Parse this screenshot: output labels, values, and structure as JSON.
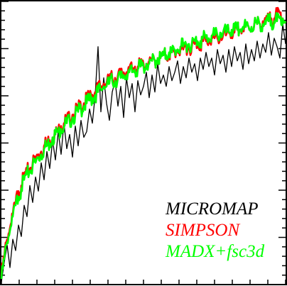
{
  "chart_data": {
    "type": "line",
    "title": "",
    "xlabel": "",
    "ylabel": "",
    "xlim": [
      0,
      100
    ],
    "ylim": [
      0,
      100
    ],
    "grid": false,
    "legend_position": "bottom-right",
    "series": [
      {
        "name": "MICROMAP",
        "color": "#000000",
        "values": [
          [
            0,
            1
          ],
          [
            1,
            8
          ],
          [
            2,
            14
          ],
          [
            3,
            6
          ],
          [
            4,
            16
          ],
          [
            5,
            12
          ],
          [
            6,
            21
          ],
          [
            7,
            17
          ],
          [
            8,
            28
          ],
          [
            9,
            24
          ],
          [
            10,
            35
          ],
          [
            11,
            29
          ],
          [
            12,
            38
          ],
          [
            13,
            33
          ],
          [
            14,
            43
          ],
          [
            15,
            37
          ],
          [
            16,
            47
          ],
          [
            17,
            41
          ],
          [
            18,
            51
          ],
          [
            19,
            44
          ],
          [
            20,
            54
          ],
          [
            21,
            46
          ],
          [
            22,
            57
          ],
          [
            23,
            48
          ],
          [
            24,
            53
          ],
          [
            25,
            45
          ],
          [
            26,
            56
          ],
          [
            27,
            49
          ],
          [
            28,
            58
          ],
          [
            29,
            52
          ],
          [
            30,
            54
          ],
          [
            31,
            62
          ],
          [
            32,
            57
          ],
          [
            33,
            67
          ],
          [
            34,
            84
          ],
          [
            35,
            61
          ],
          [
            36,
            73
          ],
          [
            37,
            64
          ],
          [
            38,
            58
          ],
          [
            39,
            68
          ],
          [
            40,
            72
          ],
          [
            41,
            63
          ],
          [
            42,
            70
          ],
          [
            43,
            59
          ],
          [
            44,
            73
          ],
          [
            45,
            66
          ],
          [
            46,
            71
          ],
          [
            47,
            61
          ],
          [
            48,
            72
          ],
          [
            49,
            67
          ],
          [
            50,
            70
          ],
          [
            51,
            75
          ],
          [
            52,
            66
          ],
          [
            53,
            74
          ],
          [
            54,
            68
          ],
          [
            55,
            78
          ],
          [
            56,
            71
          ],
          [
            57,
            74
          ],
          [
            58,
            70
          ],
          [
            59,
            77
          ],
          [
            60,
            72
          ],
          [
            61,
            75
          ],
          [
            62,
            79
          ],
          [
            63,
            71
          ],
          [
            64,
            77
          ],
          [
            65,
            73
          ],
          [
            66,
            80
          ],
          [
            67,
            75
          ],
          [
            68,
            78
          ],
          [
            69,
            72
          ],
          [
            70,
            80
          ],
          [
            71,
            76
          ],
          [
            72,
            82
          ],
          [
            73,
            77
          ],
          [
            74,
            80
          ],
          [
            75,
            74
          ],
          [
            76,
            83
          ],
          [
            77,
            78
          ],
          [
            78,
            81
          ],
          [
            79,
            75
          ],
          [
            80,
            83
          ],
          [
            81,
            77
          ],
          [
            82,
            84
          ],
          [
            83,
            79
          ],
          [
            84,
            82
          ],
          [
            85,
            76
          ],
          [
            86,
            85
          ],
          [
            87,
            78
          ],
          [
            88,
            83
          ],
          [
            89,
            79
          ],
          [
            90,
            86
          ],
          [
            91,
            80
          ],
          [
            92,
            85
          ],
          [
            93,
            82
          ],
          [
            94,
            89
          ],
          [
            95,
            81
          ],
          [
            96,
            87
          ],
          [
            97,
            84
          ],
          [
            98,
            80
          ],
          [
            99,
            92
          ],
          [
            100,
            85
          ]
        ]
      },
      {
        "name": "SIMPSON",
        "color": "#ff0000",
        "values": [
          [
            0,
            3
          ],
          [
            1,
            10
          ],
          [
            2,
            16
          ],
          [
            3,
            20
          ],
          [
            4,
            25
          ],
          [
            5,
            29
          ],
          [
            6,
            33
          ],
          [
            7,
            35
          ],
          [
            8,
            38
          ],
          [
            9,
            40
          ],
          [
            10,
            41
          ],
          [
            11,
            43
          ],
          [
            12,
            44
          ],
          [
            13,
            46
          ],
          [
            14,
            47
          ],
          [
            15,
            49
          ],
          [
            16,
            50
          ],
          [
            17,
            51
          ],
          [
            18,
            52
          ],
          [
            19,
            53
          ],
          [
            20,
            55
          ],
          [
            21,
            56
          ],
          [
            22,
            57
          ],
          [
            23,
            58
          ],
          [
            24,
            59
          ],
          [
            25,
            60
          ],
          [
            26,
            61
          ],
          [
            27,
            62
          ],
          [
            28,
            63
          ],
          [
            29,
            64
          ],
          [
            30,
            65
          ],
          [
            31,
            66
          ],
          [
            32,
            67
          ],
          [
            33,
            68
          ],
          [
            34,
            69
          ],
          [
            35,
            70
          ],
          [
            36,
            71
          ],
          [
            37,
            71
          ],
          [
            38,
            72
          ],
          [
            39,
            73
          ],
          [
            40,
            73
          ],
          [
            41,
            74
          ],
          [
            42,
            74
          ],
          [
            43,
            75
          ],
          [
            44,
            75
          ],
          [
            45,
            76
          ],
          [
            46,
            76
          ],
          [
            47,
            77
          ],
          [
            48,
            77
          ],
          [
            49,
            77
          ],
          [
            50,
            78
          ],
          [
            51,
            78
          ],
          [
            52,
            79
          ],
          [
            53,
            79
          ],
          [
            54,
            79
          ],
          [
            55,
            80
          ],
          [
            56,
            80
          ],
          [
            57,
            81
          ],
          [
            58,
            81
          ],
          [
            59,
            81
          ],
          [
            60,
            82
          ],
          [
            61,
            82
          ],
          [
            62,
            83
          ],
          [
            63,
            83
          ],
          [
            64,
            83
          ],
          [
            65,
            84
          ],
          [
            66,
            84
          ],
          [
            67,
            84
          ],
          [
            68,
            85
          ],
          [
            69,
            85
          ],
          [
            70,
            85
          ],
          [
            71,
            86
          ],
          [
            72,
            86
          ],
          [
            73,
            86
          ],
          [
            74,
            87
          ],
          [
            75,
            87
          ],
          [
            76,
            87
          ],
          [
            77,
            88
          ],
          [
            78,
            88
          ],
          [
            79,
            88
          ],
          [
            80,
            89
          ],
          [
            81,
            89
          ],
          [
            82,
            89
          ],
          [
            83,
            90
          ],
          [
            84,
            90
          ],
          [
            85,
            90
          ],
          [
            86,
            91
          ],
          [
            87,
            91
          ],
          [
            88,
            91
          ],
          [
            89,
            92
          ],
          [
            90,
            92
          ],
          [
            91,
            92
          ],
          [
            92,
            93
          ],
          [
            93,
            93
          ],
          [
            94,
            93
          ],
          [
            95,
            94
          ],
          [
            96,
            94
          ],
          [
            97,
            95
          ],
          [
            98,
            96
          ],
          [
            99,
            94
          ],
          [
            100,
            93
          ]
        ]
      },
      {
        "name": "MADX+fsc3d",
        "color": "#00ff00",
        "values": [
          [
            0,
            2
          ],
          [
            1,
            9
          ],
          [
            2,
            15
          ],
          [
            3,
            19
          ],
          [
            4,
            24
          ],
          [
            5,
            28
          ],
          [
            6,
            31
          ],
          [
            7,
            34
          ],
          [
            8,
            37
          ],
          [
            9,
            39
          ],
          [
            10,
            40
          ],
          [
            11,
            42
          ],
          [
            12,
            43
          ],
          [
            13,
            45
          ],
          [
            14,
            46
          ],
          [
            15,
            48
          ],
          [
            16,
            49
          ],
          [
            17,
            50
          ],
          [
            18,
            52
          ],
          [
            19,
            53
          ],
          [
            20,
            54
          ],
          [
            21,
            55
          ],
          [
            22,
            56
          ],
          [
            23,
            57
          ],
          [
            24,
            58
          ],
          [
            25,
            59
          ],
          [
            26,
            60
          ],
          [
            27,
            61
          ],
          [
            28,
            62
          ],
          [
            29,
            63
          ],
          [
            30,
            64
          ],
          [
            31,
            65
          ],
          [
            32,
            66
          ],
          [
            33,
            67
          ],
          [
            34,
            68
          ],
          [
            35,
            69
          ],
          [
            36,
            70
          ],
          [
            37,
            70
          ],
          [
            38,
            71
          ],
          [
            39,
            72
          ],
          [
            40,
            72
          ],
          [
            41,
            73
          ],
          [
            42,
            73
          ],
          [
            43,
            74
          ],
          [
            44,
            74
          ],
          [
            45,
            75
          ],
          [
            46,
            75
          ],
          [
            47,
            76
          ],
          [
            48,
            76
          ],
          [
            49,
            77
          ],
          [
            50,
            77
          ],
          [
            51,
            78
          ],
          [
            52,
            78
          ],
          [
            53,
            79
          ],
          [
            54,
            79
          ],
          [
            55,
            80
          ],
          [
            56,
            80
          ],
          [
            57,
            81
          ],
          [
            58,
            81
          ],
          [
            59,
            82
          ],
          [
            60,
            82
          ],
          [
            61,
            83
          ],
          [
            62,
            83
          ],
          [
            63,
            84
          ],
          [
            64,
            84
          ],
          [
            65,
            85
          ],
          [
            66,
            85
          ],
          [
            67,
            85
          ],
          [
            68,
            86
          ],
          [
            69,
            86
          ],
          [
            70,
            86
          ],
          [
            71,
            87
          ],
          [
            72,
            87
          ],
          [
            73,
            87
          ],
          [
            74,
            88
          ],
          [
            75,
            88
          ],
          [
            76,
            88
          ],
          [
            77,
            89
          ],
          [
            78,
            89
          ],
          [
            79,
            89
          ],
          [
            80,
            89
          ],
          [
            81,
            90
          ],
          [
            82,
            90
          ],
          [
            83,
            90
          ],
          [
            84,
            90
          ],
          [
            85,
            91
          ],
          [
            86,
            91
          ],
          [
            87,
            91
          ],
          [
            88,
            91
          ],
          [
            89,
            92
          ],
          [
            90,
            92
          ],
          [
            91,
            92
          ],
          [
            92,
            92
          ],
          [
            93,
            92
          ],
          [
            94,
            93
          ],
          [
            95,
            93
          ],
          [
            96,
            93
          ],
          [
            97,
            93
          ],
          [
            98,
            94
          ],
          [
            99,
            94
          ],
          [
            100,
            93
          ]
        ]
      }
    ],
    "legend": {
      "entries": [
        {
          "label": "MICROMAP",
          "color": "#000000"
        },
        {
          "label": "SIMPSON",
          "color": "#ff0000"
        },
        {
          "label": "MADX+fsc3d",
          "color": "#00ff00"
        }
      ]
    }
  }
}
